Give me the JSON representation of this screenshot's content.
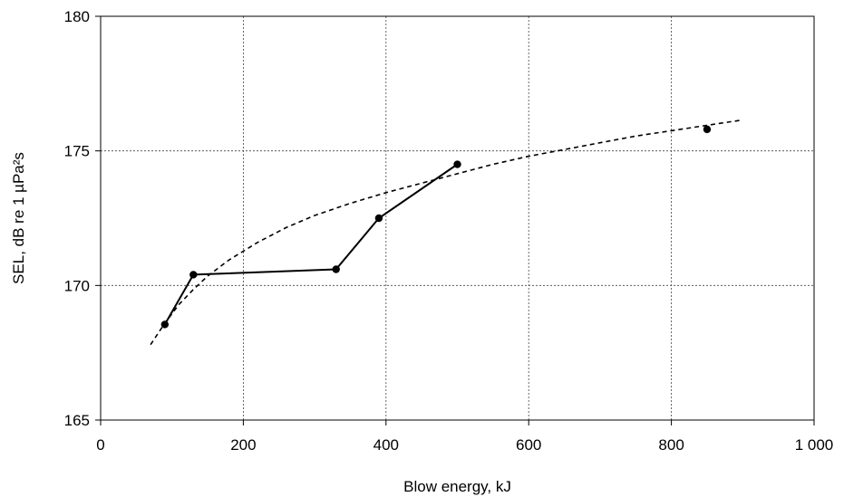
{
  "chart_data": {
    "type": "line",
    "xlabel": "Blow energy, kJ",
    "ylabel": "SEL, dB re 1 µPa²s",
    "xlim": [
      0,
      1000
    ],
    "ylim": [
      165,
      180
    ],
    "x_ticks": [
      0,
      200,
      400,
      600,
      800,
      1000
    ],
    "x_tick_labels": [
      "0",
      "200",
      "400",
      "600",
      "800",
      "1 000"
    ],
    "y_ticks": [
      165,
      170,
      175,
      180
    ],
    "y_tick_labels": [
      "165",
      "170",
      "175",
      "180"
    ],
    "grid": true,
    "legend": "none",
    "series": [
      {
        "style": "solid-line-with-markers",
        "color": "#000000",
        "x": [
          90,
          130,
          330,
          390,
          500
        ],
        "y": [
          168.55,
          170.4,
          170.6,
          172.5,
          174.5
        ]
      },
      {
        "style": "marker-only",
        "color": "#000000",
        "x": [
          850
        ],
        "y": [
          175.8
        ]
      },
      {
        "style": "dashed-trend",
        "color": "#000000",
        "x": [
          70,
          90,
          110,
          130,
          150,
          180,
          220,
          260,
          300,
          350,
          400,
          450,
          500,
          550,
          600,
          650,
          700,
          750,
          800,
          850,
          900
        ],
        "y": [
          167.8,
          168.6,
          169.3,
          169.85,
          170.35,
          170.95,
          171.6,
          172.15,
          172.6,
          173.05,
          173.45,
          173.8,
          174.15,
          174.5,
          174.8,
          175.05,
          175.3,
          175.55,
          175.75,
          175.95,
          176.15
        ]
      }
    ]
  }
}
